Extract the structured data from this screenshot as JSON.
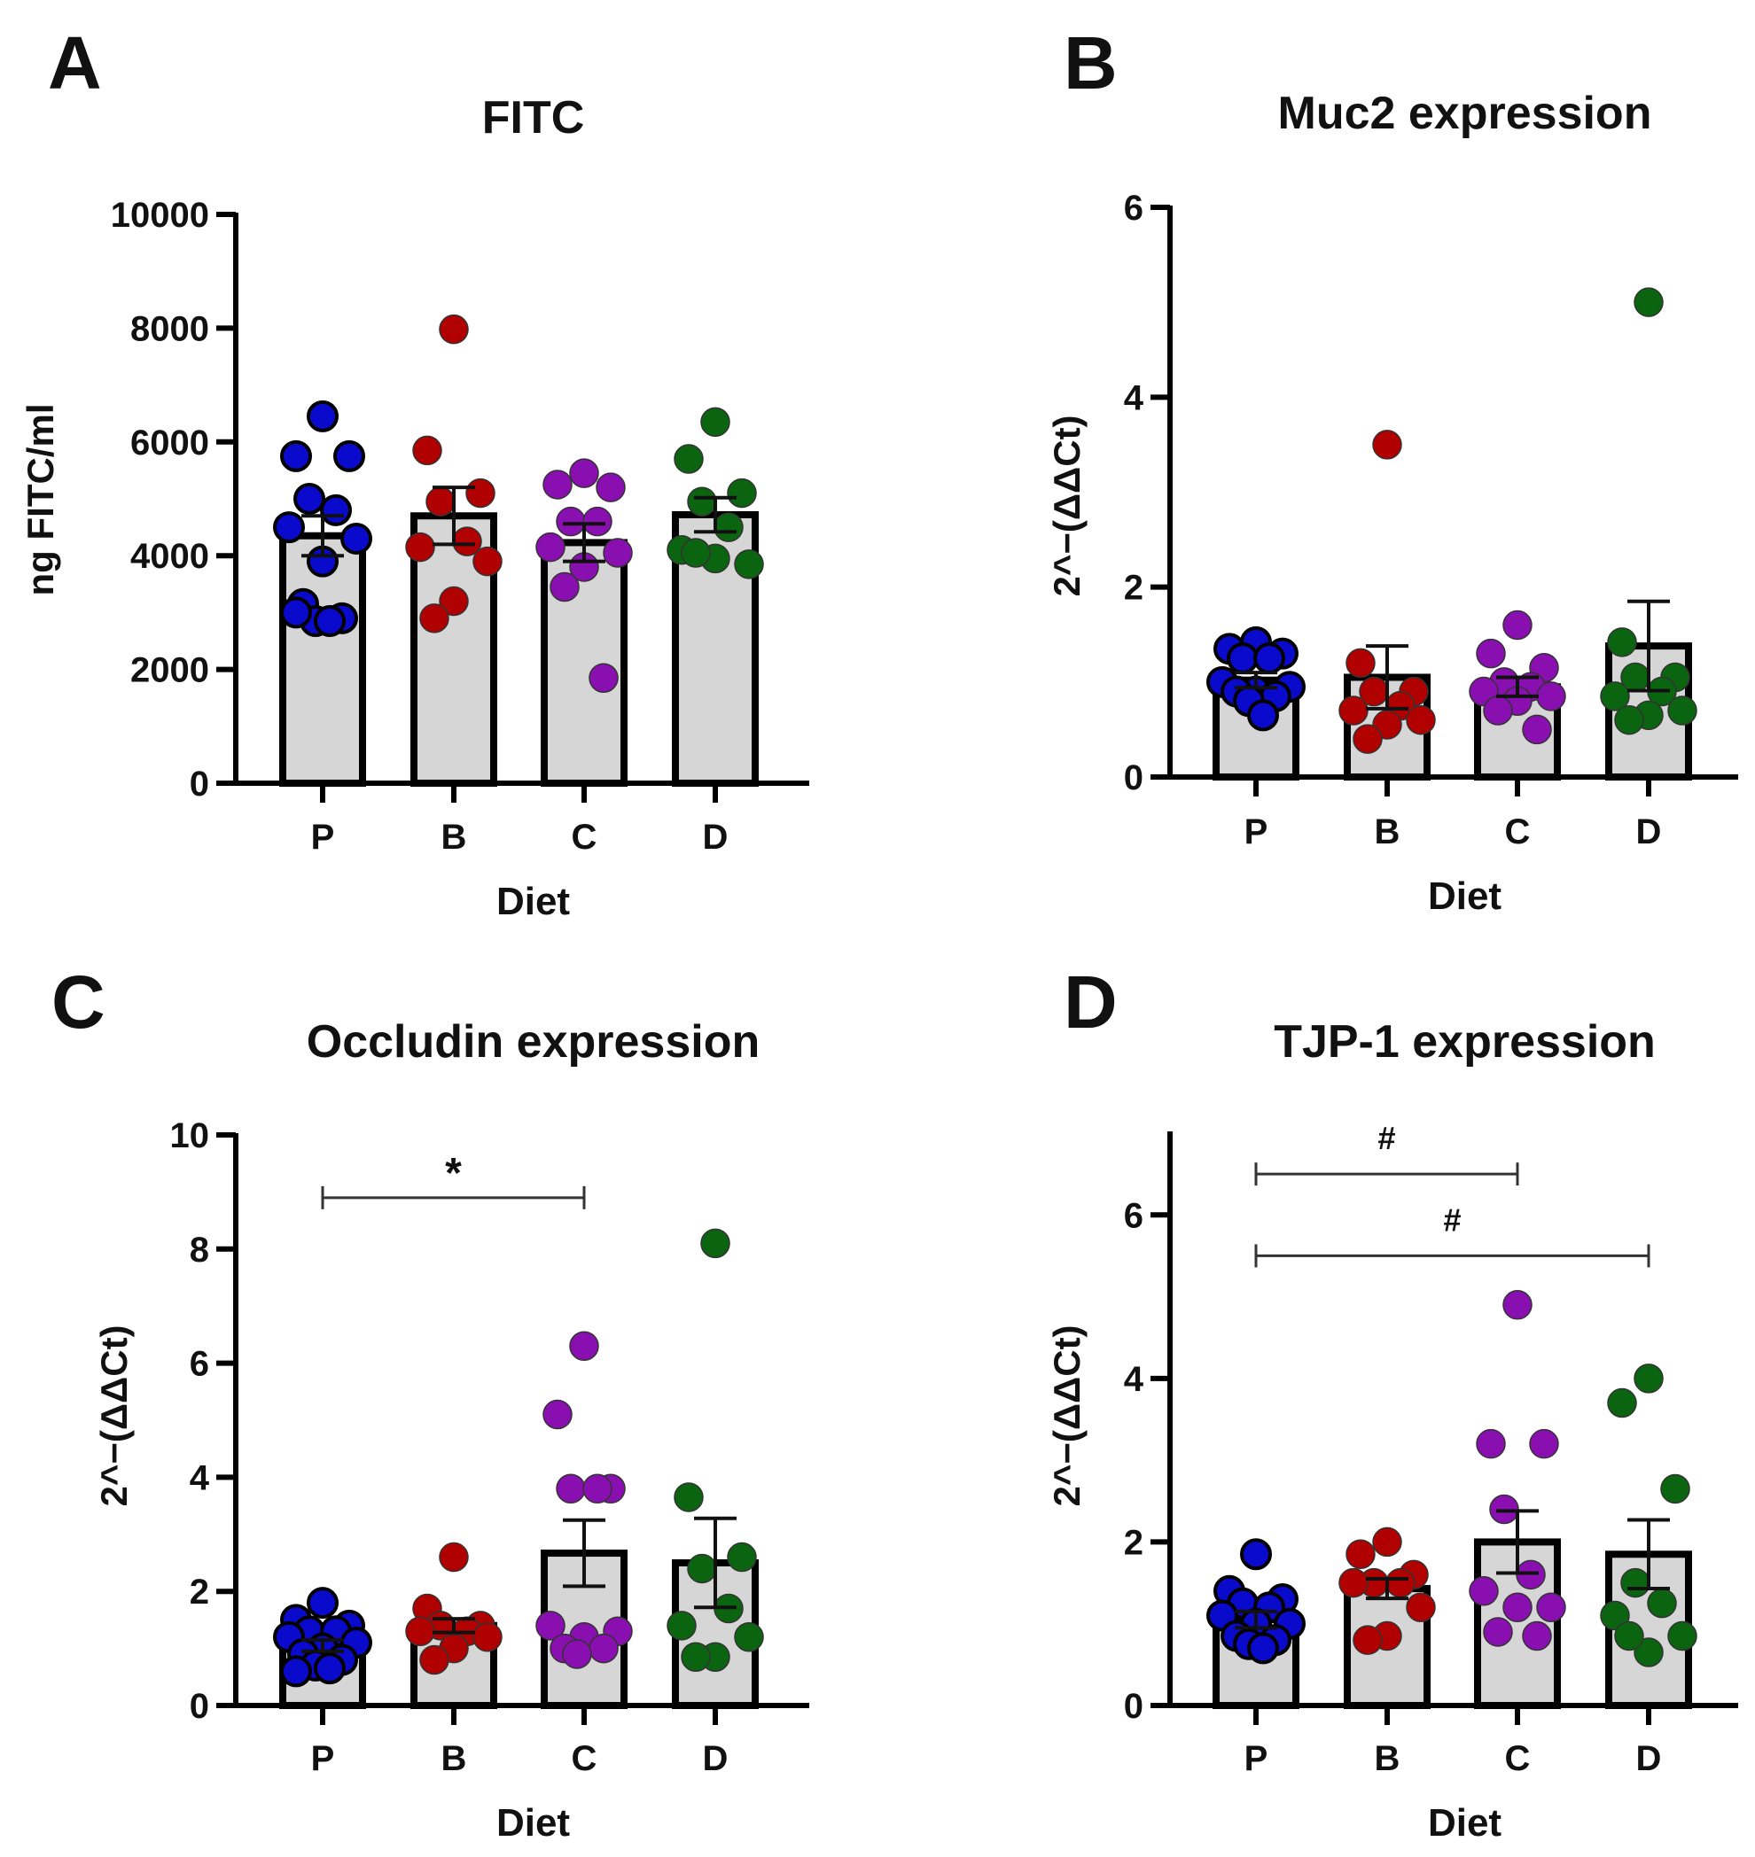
{
  "colors": {
    "P": "#0a0acc",
    "B": "#b00000",
    "C": "#8a0fb0",
    "D": "#0a6410",
    "bar_fill": "#d6d6d6"
  },
  "chart_data": [
    {
      "panel_label": "A",
      "type": "bar",
      "title": "FITC",
      "xlabel": "Diet",
      "ylabel": "ng FITC/ml",
      "ylim": [
        0,
        10000
      ],
      "yticks": [
        "0",
        "2000",
        "4000",
        "6000",
        "8000",
        "10000"
      ],
      "ytick_values": [
        0,
        2000,
        4000,
        6000,
        8000,
        10000
      ],
      "categories": [
        "P",
        "B",
        "C",
        "D"
      ],
      "means": [
        4350,
        4700,
        4230,
        4720
      ],
      "sem": [
        350,
        500,
        330,
        300
      ],
      "points": [
        [
          6450,
          5750,
          5750,
          5000,
          4800,
          4500,
          4300,
          3900,
          3150,
          2900,
          2850,
          2850,
          3000
        ],
        [
          7980,
          5850,
          5100,
          4950,
          4250,
          4150,
          3900,
          3200,
          2900
        ],
        [
          5450,
          5250,
          5200,
          4600,
          4600,
          4150,
          4050,
          3800,
          3450,
          1850
        ],
        [
          6350,
          5700,
          5100,
          4950,
          4500,
          4100,
          3850,
          3950,
          4050
        ]
      ],
      "significance": []
    },
    {
      "panel_label": "B",
      "type": "bar",
      "title": "Muc2 expression",
      "xlabel": "Diet",
      "ylabel": "2^−(ΔΔCt)",
      "ylim": [
        0,
        6
      ],
      "yticks": [
        "0",
        "2",
        "4",
        "6"
      ],
      "ytick_values": [
        0,
        2,
        4,
        6
      ],
      "categories": [
        "P",
        "B",
        "C",
        "D"
      ],
      "means": [
        1.02,
        1.05,
        0.95,
        1.38
      ],
      "sem": [
        0.08,
        0.33,
        0.1,
        0.47
      ],
      "points": [
        [
          1.42,
          1.35,
          1.3,
          1.25,
          1.25,
          1.0,
          0.95,
          0.9,
          0.9,
          0.85,
          0.8,
          0.65
        ],
        [
          3.5,
          1.2,
          0.9,
          0.9,
          0.75,
          0.7,
          0.6,
          0.55,
          0.4
        ],
        [
          1.6,
          1.3,
          1.15,
          1.0,
          0.95,
          0.9,
          0.85,
          0.8,
          0.7,
          0.5
        ],
        [
          5.0,
          1.42,
          1.05,
          1.05,
          0.9,
          0.85,
          0.7,
          0.65,
          0.6
        ]
      ],
      "significance": []
    },
    {
      "panel_label": "C",
      "type": "bar",
      "title": "Occludin expression",
      "xlabel": "Diet",
      "ylabel": "2^−(ΔΔCt)",
      "ylim": [
        0,
        10
      ],
      "yticks": [
        "0",
        "2",
        "4",
        "6",
        "8",
        "10"
      ],
      "ytick_values": [
        0,
        2,
        4,
        6,
        8,
        10
      ],
      "categories": [
        "P",
        "B",
        "C",
        "D"
      ],
      "means": [
        1.05,
        1.4,
        2.67,
        2.5
      ],
      "sem": [
        0.1,
        0.12,
        0.58,
        0.78
      ],
      "points": [
        [
          1.8,
          1.5,
          1.4,
          1.3,
          1.3,
          1.2,
          1.1,
          1.0,
          0.9,
          0.8,
          0.7,
          0.65,
          0.6
        ],
        [
          2.6,
          1.7,
          1.4,
          1.4,
          1.3,
          1.3,
          1.2,
          1.0,
          0.8
        ],
        [
          6.3,
          5.1,
          3.8,
          3.8,
          3.8,
          1.4,
          1.3,
          1.2,
          1.0,
          1.0,
          0.9
        ],
        [
          8.1,
          3.65,
          2.6,
          2.4,
          1.7,
          1.4,
          1.2,
          0.85,
          0.85
        ]
      ],
      "significance": [
        {
          "from": "P",
          "to": "C",
          "label": "*",
          "level": 8.9
        }
      ]
    },
    {
      "panel_label": "D",
      "type": "bar",
      "title": "TJP-1 expression",
      "xlabel": "Diet",
      "ylabel": "2^−(ΔΔCt)",
      "ylim": [
        0,
        7
      ],
      "yticks": [
        "0",
        "2",
        "4",
        "6"
      ],
      "ytick_values": [
        0,
        2,
        4,
        6
      ],
      "categories": [
        "P",
        "B",
        "C",
        "D"
      ],
      "means": [
        1.05,
        1.43,
        2.0,
        1.85
      ],
      "sem": [
        0.1,
        0.12,
        0.38,
        0.42
      ],
      "points": [
        [
          1.85,
          1.4,
          1.3,
          1.25,
          1.2,
          1.1,
          1.0,
          1.0,
          0.85,
          0.8,
          0.75,
          0.7
        ],
        [
          2.0,
          1.85,
          1.6,
          1.5,
          1.5,
          1.5,
          1.2,
          0.85,
          0.8
        ],
        [
          4.9,
          3.2,
          3.2,
          2.4,
          1.6,
          1.4,
          1.2,
          1.2,
          0.9,
          0.85
        ],
        [
          4.0,
          3.7,
          2.65,
          1.5,
          1.25,
          1.1,
          0.85,
          0.65,
          0.85
        ]
      ],
      "significance": [
        {
          "from": "P",
          "to": "C",
          "label": "#",
          "level": 6.5
        },
        {
          "from": "P",
          "to": "D",
          "label": "#",
          "level": 5.5
        }
      ]
    }
  ]
}
